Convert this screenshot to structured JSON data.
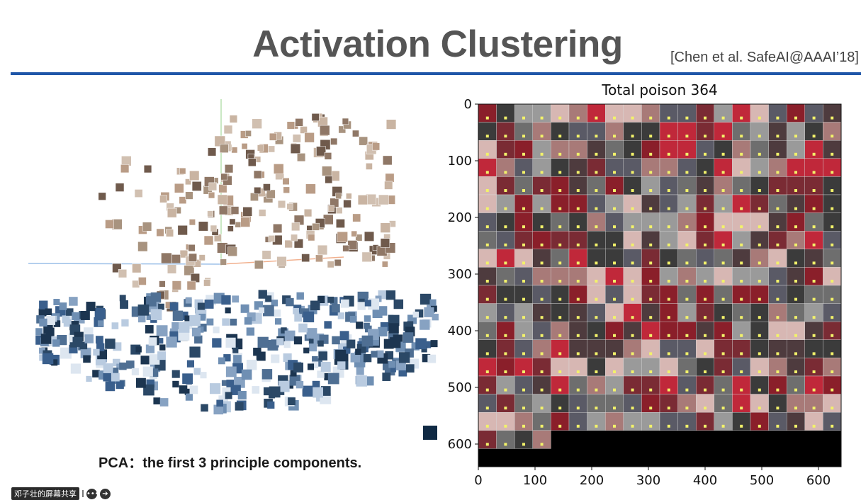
{
  "slide": {
    "title": "Activation Clustering",
    "citation": "[Chen et al. SafeAI@AAAI’18]",
    "pca_caption": "PCA：the first 3 principle components.",
    "rule_color": "#1f56a8"
  },
  "share_bar": {
    "label": "邓子壮的屏幕共享",
    "more_icon": "ellipsis-icon",
    "next_icon": "arrow-right-icon"
  },
  "pca_plot": {
    "clusters": [
      {
        "name": "",
        "color": "#a89080",
        "icon": "face-thumbnail"
      },
      {
        "name": "",
        "color": "#6a86a8",
        "icon": "blue-thumbnail"
      }
    ]
  },
  "chart_data": {
    "type": "heatmap",
    "title": "Total poison 364",
    "xlabel": "",
    "ylabel": "",
    "x_ticks": [
      0,
      100,
      200,
      300,
      400,
      500,
      600
    ],
    "y_ticks": [
      0,
      100,
      200,
      300,
      400,
      500,
      600
    ],
    "xlim": [
      0,
      640
    ],
    "ylim": [
      640,
      0
    ],
    "grid": false,
    "total_images": 364,
    "images_per_row": 20,
    "tile_size": 32
  }
}
